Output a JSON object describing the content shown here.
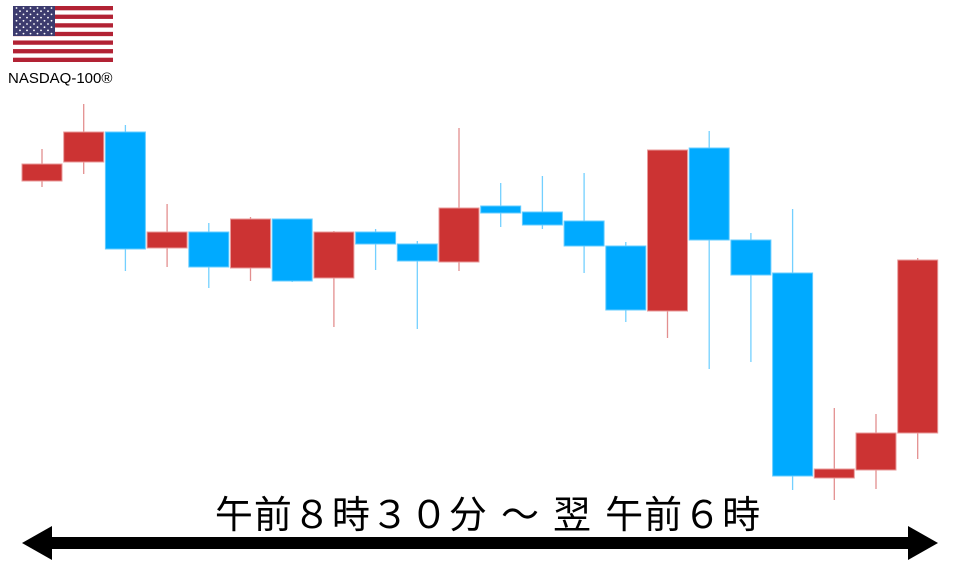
{
  "header": {
    "index_name": "NASDAQ-100®",
    "flag_icon": "us-flag-icon"
  },
  "period_label": "午前８時３０分 ～ 翌 午前６時",
  "colors": {
    "up": "#cc3333",
    "down": "#00aaff",
    "arrow": "#000000"
  },
  "chart_data": {
    "type": "candlestick",
    "title": "",
    "xlabel": "",
    "ylabel": "",
    "axes_visible": false,
    "grid": false,
    "note_units": "relative price level (no axis printed)",
    "candles": [
      {
        "o": 386,
        "h": 418,
        "l": 380,
        "c": 403
      },
      {
        "o": 405,
        "h": 463,
        "l": 393,
        "c": 435
      },
      {
        "o": 435,
        "h": 442,
        "l": 296,
        "c": 318
      },
      {
        "o": 319,
        "h": 363,
        "l": 300,
        "c": 335
      },
      {
        "o": 335,
        "h": 344,
        "l": 279,
        "c": 300
      },
      {
        "o": 299,
        "h": 350,
        "l": 286,
        "c": 348
      },
      {
        "o": 348,
        "h": 348,
        "l": 285,
        "c": 286
      },
      {
        "o": 289,
        "h": 336,
        "l": 240,
        "c": 335
      },
      {
        "o": 335,
        "h": 338,
        "l": 297,
        "c": 323
      },
      {
        "o": 323,
        "h": 326,
        "l": 238,
        "c": 306
      },
      {
        "o": 305,
        "h": 439,
        "l": 296,
        "c": 359
      },
      {
        "o": 361,
        "h": 384,
        "l": 340,
        "c": 354
      },
      {
        "o": 355,
        "h": 391,
        "l": 338,
        "c": 342
      },
      {
        "o": 346,
        "h": 394,
        "l": 294,
        "c": 321
      },
      {
        "o": 321,
        "h": 325,
        "l": 245,
        "c": 257
      },
      {
        "o": 256,
        "h": 417,
        "l": 229,
        "c": 417
      },
      {
        "o": 419,
        "h": 436,
        "l": 198,
        "c": 327
      },
      {
        "o": 327,
        "h": 334,
        "l": 205,
        "c": 292
      },
      {
        "o": 294,
        "h": 358,
        "l": 77,
        "c": 91
      },
      {
        "o": 89,
        "h": 159,
        "l": 67,
        "c": 98
      },
      {
        "o": 97,
        "h": 153,
        "l": 78,
        "c": 134
      },
      {
        "o": 134,
        "h": 309,
        "l": 108,
        "c": 307
      }
    ]
  }
}
